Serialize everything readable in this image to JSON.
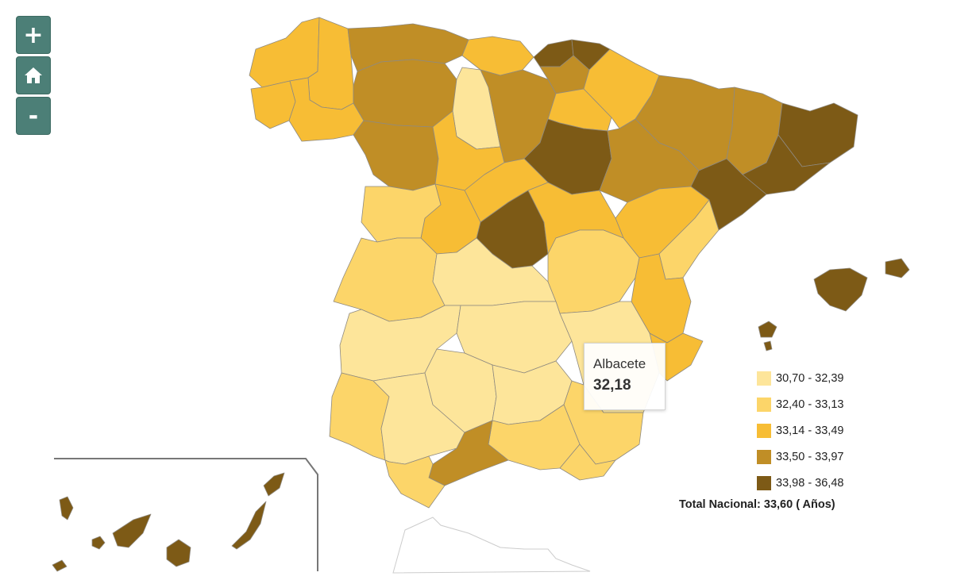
{
  "controls": {
    "zoom_in_label": "+",
    "home_icon": "home-icon",
    "zoom_out_label": "-"
  },
  "tooltip": {
    "name": "Albacete",
    "value": "32,18"
  },
  "legend": {
    "items": [
      {
        "label": "30,70 - 32,39",
        "color": "#fde59a"
      },
      {
        "label": "32,40 - 33,13",
        "color": "#fcd569"
      },
      {
        "label": "33,14 - 33,49",
        "color": "#f7bd35"
      },
      {
        "label": "33,50 - 33,97",
        "color": "#c08e26"
      },
      {
        "label": "33,98 - 36,48",
        "color": "#7d5a16"
      }
    ]
  },
  "total": "Total Nacional: 33,60 ( Años)"
}
